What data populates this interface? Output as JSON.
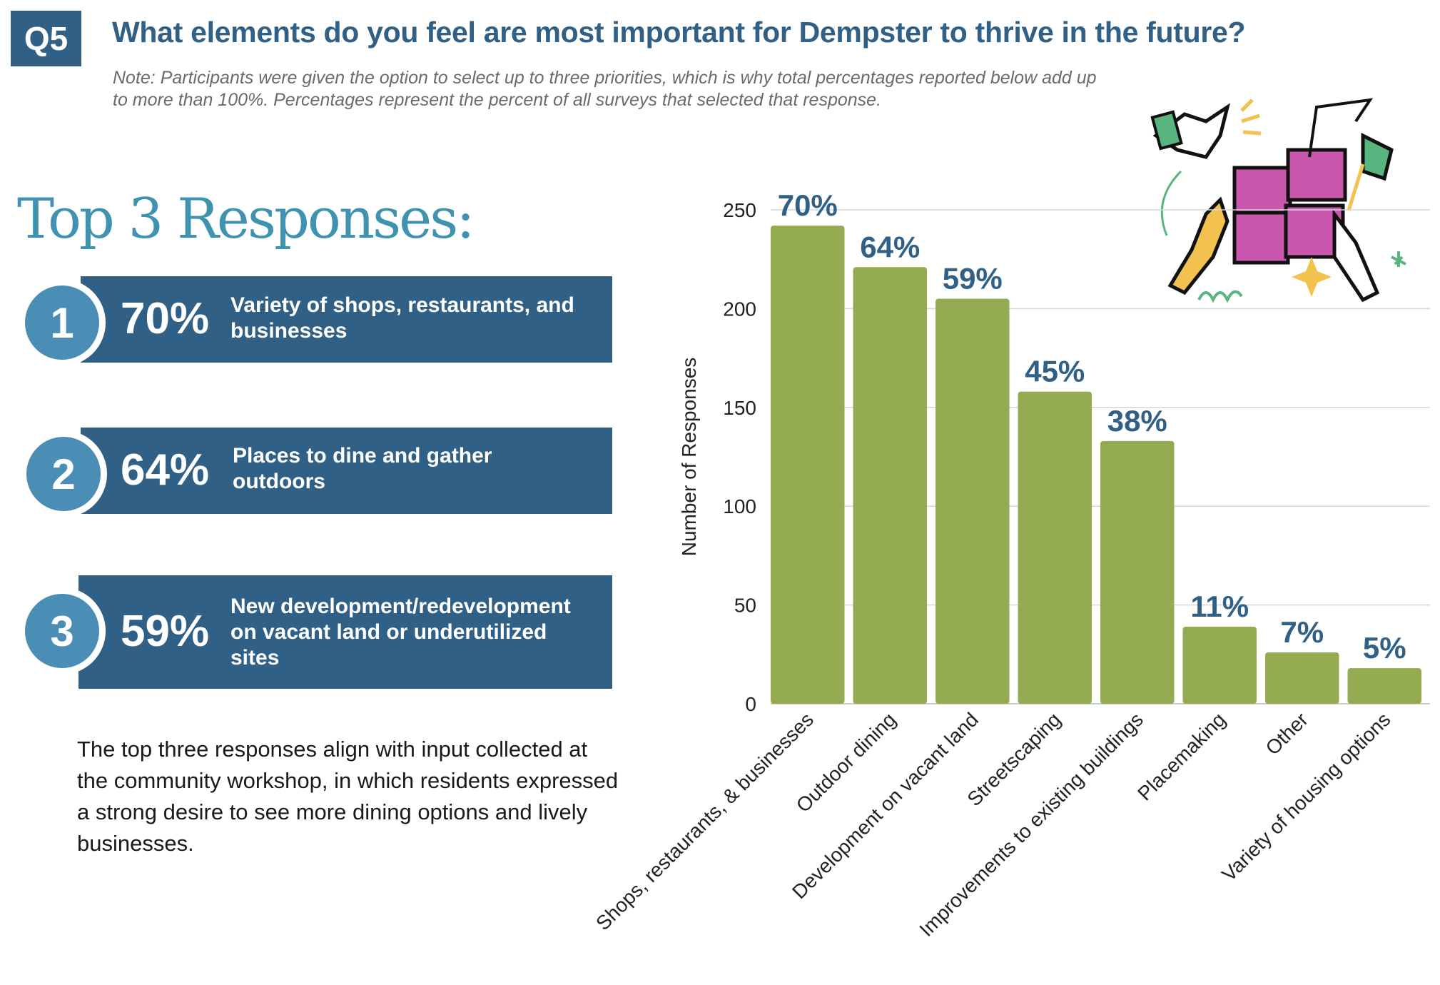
{
  "header": {
    "question_number": "Q5",
    "title": "What elements do you feel are most important for Dempster to thrive in the future?",
    "note": "Note: Participants were given the option to select up to three priorities, which is why total percentages reported below add up to more than 100%. Percentages represent the percent of all surveys that selected that response."
  },
  "top3": {
    "heading": "Top 3 Responses:",
    "items": [
      {
        "rank": "1",
        "percent": "70%",
        "label": "Variety of shops, restaurants, and businesses"
      },
      {
        "rank": "2",
        "percent": "64%",
        "label": "Places to dine and gather outdoors"
      },
      {
        "rank": "3",
        "percent": "59%",
        "label": "New development/redevelopment on vacant land or underutilized sites"
      }
    ],
    "summary": "The top three responses align with input collected at the community workshop, in which residents expressed a strong desire to see more dining options and lively businesses."
  },
  "colors": {
    "bar": "#94ab52",
    "label": "#316086",
    "card": "#316086",
    "circle": "#4a8db5",
    "heading": "#3f93b0"
  },
  "chart_data": {
    "type": "bar",
    "title": "",
    "xlabel": "",
    "ylabel": "Number of Responses",
    "ylim": [
      0,
      250
    ],
    "yticks": [
      0,
      50,
      100,
      150,
      200,
      250
    ],
    "grid": true,
    "categories": [
      "Shops, restaurants, & businesses",
      "Outdoor dining",
      "Development on vacant land",
      "Streetscaping",
      "Improvements to existing buildings",
      "Placemaking",
      "Other",
      "Variety of housing options"
    ],
    "values": [
      242,
      221,
      205,
      158,
      133,
      39,
      26,
      18
    ],
    "data_labels": [
      "70%",
      "64%",
      "59%",
      "45%",
      "38%",
      "11%",
      "7%",
      "5%"
    ]
  }
}
